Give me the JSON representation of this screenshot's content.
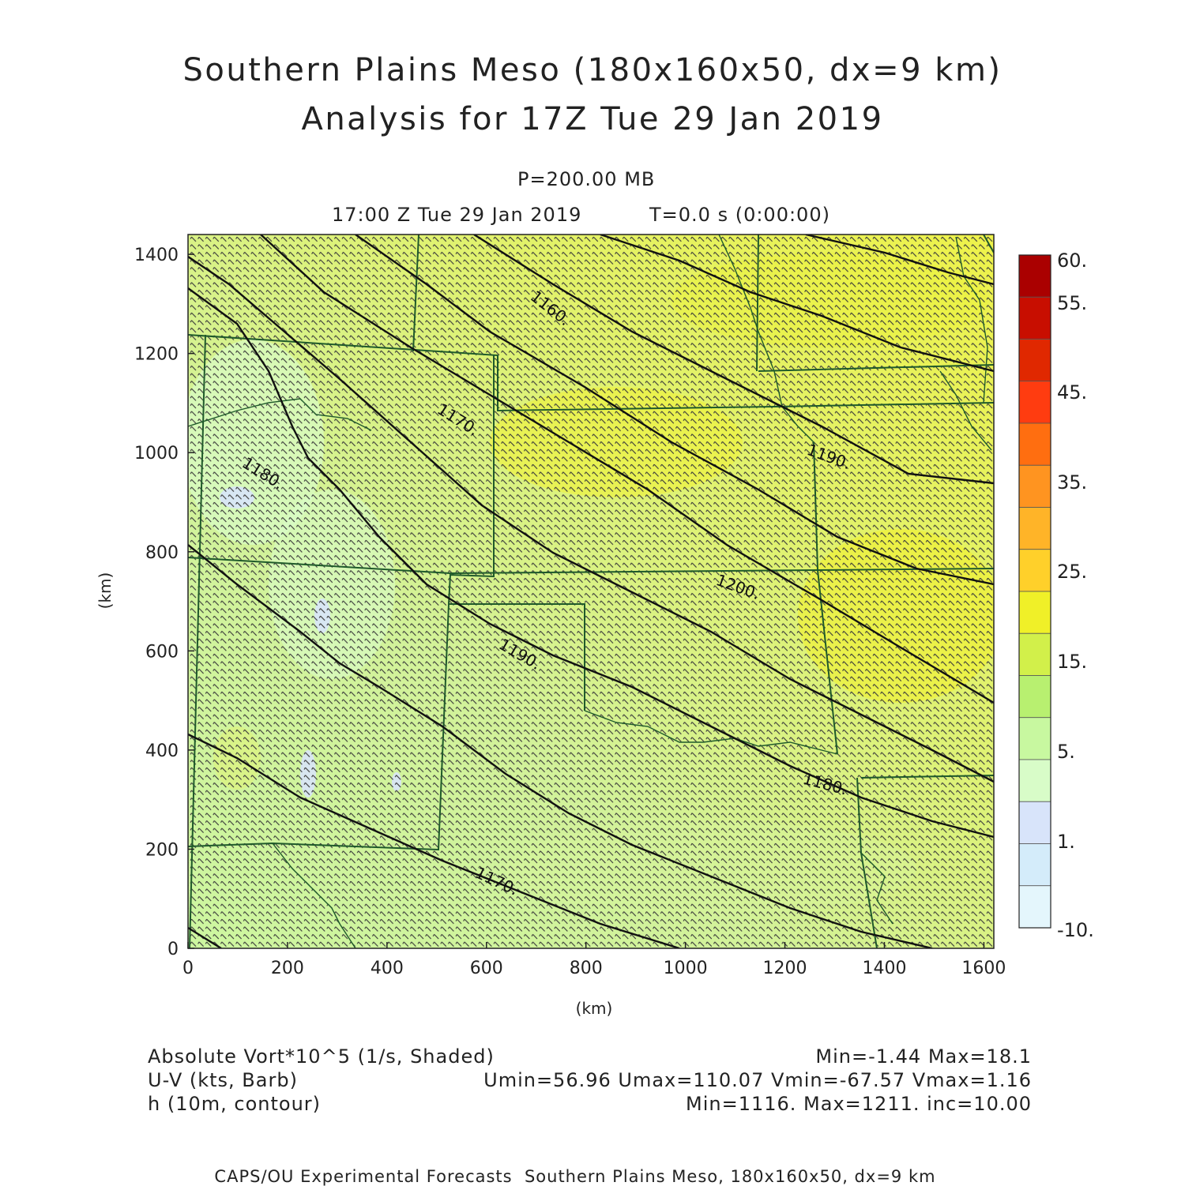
{
  "header": {
    "title_line1": "Southern Plains Meso (180x160x50, dx=9 km)",
    "title_line2": "Analysis for 17Z Tue 29 Jan 2019",
    "level": "P=200.00 MB",
    "time": "17:00 Z Tue 29 Jan 2019",
    "model_time": "T=0.0 s (0:00:00)"
  },
  "axes": {
    "xlabel": "(km)",
    "ylabel": "(km)",
    "x_ticks": [
      "0",
      "200",
      "400",
      "600",
      "800",
      "1000",
      "1200",
      "1400",
      "1600"
    ],
    "y_ticks": [
      "0",
      "200",
      "400",
      "600",
      "800",
      "1000",
      "1200",
      "1400"
    ],
    "x_range_km": [
      0,
      1620
    ],
    "y_range_km": [
      0,
      1440
    ]
  },
  "colorbar": {
    "labels": [
      "60.",
      "55.",
      "45.",
      "35.",
      "25.",
      "15.",
      "5.",
      "1.",
      "-10."
    ],
    "colors": [
      "#aa0000",
      "#c80e00",
      "#e02800",
      "#ff3c10",
      "#ff6e10",
      "#ff9420",
      "#ffb428",
      "#ffd02a",
      "#f0f028",
      "#d2f04a",
      "#b8f070",
      "#c8f8a0",
      "#d8fcc8",
      "#d8e4fa",
      "#d4ecfa",
      "#e4f6fc"
    ]
  },
  "fields": {
    "shaded_label": "Absolute Vort*10^5 (1/s, Shaded)",
    "shaded_stats": "Min=-1.44 Max=18.1",
    "vector_label": "U-V (kts, Barb)",
    "vector_stats": "Umin=56.96 Umax=110.07 Vmin=-67.57 Vmax=1.16",
    "contour_label": "h (10m, contour)",
    "contour_stats": "Min=1116. Max=1211. inc=10.00"
  },
  "contour_labels": [
    "1160.",
    "1170.",
    "1180.",
    "1190.",
    "1200.",
    "1190.",
    "1180.",
    "1170.",
    "1180."
  ],
  "footer": "CAPS/OU Experimental Forecasts  Southern Plains Meso, 180x160x50, dx=9 km"
}
